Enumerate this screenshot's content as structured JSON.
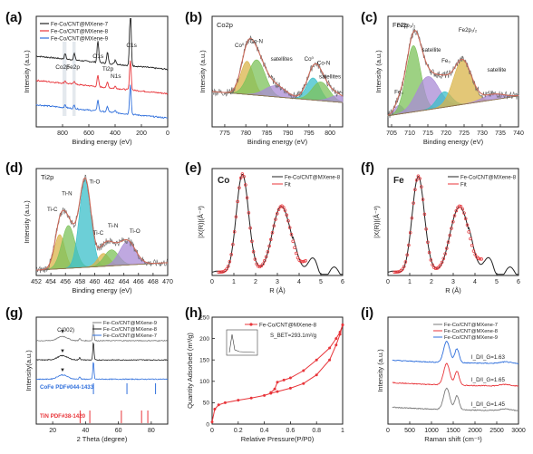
{
  "figure": {
    "panels": [
      {
        "id": "a",
        "label": "(a)"
      },
      {
        "id": "b",
        "label": "(b)"
      },
      {
        "id": "c",
        "label": "(c)"
      },
      {
        "id": "d",
        "label": "(d)"
      },
      {
        "id": "e",
        "label": "(e)"
      },
      {
        "id": "f",
        "label": "(f)"
      },
      {
        "id": "g",
        "label": "(g)"
      },
      {
        "id": "h",
        "label": "(h)"
      },
      {
        "id": "i",
        "label": "(i)"
      }
    ]
  },
  "colors": {
    "black": "#222222",
    "red": "#e8353a",
    "blue": "#2f6fdc",
    "gray": "#7a7a7a",
    "green": "#7cc25a",
    "cyan": "#3bbfc9",
    "purple": "#a98bd6",
    "gold": "#d9b44a",
    "envelope": "#c96a5a",
    "pink": "#f0a0a0"
  },
  "chart_data": [
    {
      "id": "a",
      "type": "line",
      "xlabel": "Binding energy (eV)",
      "ylabel": "Intensity (a.u.)",
      "xlim": [
        1000,
        0
      ],
      "xticks": [
        800,
        600,
        400,
        200,
        0
      ],
      "grid": false,
      "legend": "top-left",
      "series": [
        {
          "name": "Fe-Co/CNT@MXene-7",
          "color": "#222222",
          "offset": 0.52
        },
        {
          "name": "Fe-Co/CNT@MXene-8",
          "color": "#e8353a",
          "offset": 0.3
        },
        {
          "name": "Fe-Co/CNT@MXene-9",
          "color": "#2f6fdc",
          "offset": 0.08
        }
      ],
      "peaks": [
        {
          "x": 780,
          "h": 0.05
        },
        {
          "x": 711,
          "h": 0.06
        },
        {
          "x": 531,
          "h": 0.2
        },
        {
          "x": 458,
          "h": 0.1
        },
        {
          "x": 398,
          "h": 0.04
        },
        {
          "x": 284,
          "h": 0.55
        }
      ],
      "annotations": [
        "Co2p",
        "Fe2p",
        "O1s",
        "Ti2p",
        "N1s",
        "C1s"
      ]
    },
    {
      "id": "b",
      "type": "area",
      "title": "Co2p",
      "xlabel": "Binding energy (eV)",
      "ylabel": "Intensity (a.u.)",
      "xlim": [
        772,
        803
      ],
      "xticks": [
        775,
        780,
        785,
        790,
        795,
        800
      ],
      "grid": false,
      "components": [
        {
          "center": 780.3,
          "width": 1.5,
          "height": 0.3,
          "color": "#d9b44a"
        },
        {
          "center": 782.6,
          "width": 2.0,
          "height": 0.32,
          "color": "#7cc25a"
        },
        {
          "center": 787,
          "width": 2.5,
          "height": 0.1,
          "color": "#a98bd6"
        },
        {
          "center": 796,
          "width": 1.6,
          "height": 0.2,
          "color": "#3bbfc9"
        },
        {
          "center": 797.8,
          "width": 2.0,
          "height": 0.17,
          "color": "#7cc25a"
        },
        {
          "center": 802,
          "width": 2.0,
          "height": 0.06,
          "color": "#a98bd6"
        }
      ],
      "annotations": [
        "Co⁰",
        "Co-N",
        "satellites",
        "Co⁰",
        "Co-N",
        "satellites"
      ]
    },
    {
      "id": "c",
      "type": "area",
      "title": "Fe2p",
      "xlabel": "Binding energy (eV)",
      "ylabel": "Intensity (a.u.)",
      "xlim": [
        704,
        740
      ],
      "xticks": [
        705,
        710,
        715,
        720,
        725,
        730,
        735,
        740
      ],
      "grid": false,
      "components": [
        {
          "center": 707,
          "width": 1.2,
          "height": 0.08,
          "color": "#a98bd6"
        },
        {
          "center": 711,
          "width": 2.0,
          "height": 0.6,
          "color": "#7cc25a"
        },
        {
          "center": 715,
          "width": 3.0,
          "height": 0.3,
          "color": "#a98bd6"
        },
        {
          "center": 719.5,
          "width": 2.0,
          "height": 0.14,
          "color": "#3bbfc9"
        },
        {
          "center": 724.5,
          "width": 2.5,
          "height": 0.4,
          "color": "#d9b44a"
        },
        {
          "center": 733,
          "width": 3.0,
          "height": 0.05,
          "color": "#a98bd6"
        }
      ],
      "annotations": [
        "Fe₀",
        "Fe2p₃/₂",
        "satellite",
        "Fe₀",
        "Fe2p₁/₂",
        "satellite"
      ]
    },
    {
      "id": "d",
      "type": "area",
      "title": "Ti2p",
      "xlabel": "Binding energy (eV)",
      "ylabel": "Intensity (a.u.)",
      "xlim": [
        452,
        470
      ],
      "xticks": [
        452,
        454,
        456,
        458,
        460,
        462,
        464,
        466,
        468,
        470
      ],
      "grid": false,
      "components": [
        {
          "center": 455.2,
          "width": 0.7,
          "height": 0.32,
          "color": "#d9b44a"
        },
        {
          "center": 456.4,
          "width": 0.9,
          "height": 0.4,
          "color": "#7cc25a"
        },
        {
          "center": 458.7,
          "width": 0.8,
          "height": 0.82,
          "color": "#3bbfc9"
        },
        {
          "center": 461.2,
          "width": 0.8,
          "height": 0.12,
          "color": "#d9b44a"
        },
        {
          "center": 462.3,
          "width": 1.0,
          "height": 0.15,
          "color": "#7cc25a"
        },
        {
          "center": 464.5,
          "width": 1.1,
          "height": 0.22,
          "color": "#a98bd6"
        }
      ],
      "annotations": [
        "Ti-C",
        "Ti-N",
        "Ti-O",
        "Ti-C",
        "Ti-N",
        "Ti-O"
      ]
    },
    {
      "id": "e",
      "type": "line",
      "title": "Co",
      "xlabel": "R (Å)",
      "ylabel": "|X(R)|(Å⁻³)",
      "xlim": [
        0,
        6
      ],
      "xticks": [
        0,
        1,
        2,
        3,
        4,
        5,
        6
      ],
      "grid": false,
      "legend": "top-right",
      "series": [
        {
          "name": "Fe-Co/CNT@MXene-8",
          "color": "#222222"
        },
        {
          "name": "Fit",
          "color": "#e8353a"
        }
      ],
      "peaks": [
        {
          "x": 1.4,
          "h": 0.92
        },
        {
          "x": 3.2,
          "h": 0.62
        }
      ]
    },
    {
      "id": "f",
      "type": "line",
      "title": "Fe",
      "xlabel": "R (Å)",
      "ylabel": "|X(R)|(Å⁻³)",
      "xlim": [
        0,
        6
      ],
      "xticks": [
        0,
        1,
        2,
        3,
        4,
        5,
        6
      ],
      "grid": false,
      "legend": "top-right",
      "series": [
        {
          "name": "Fe-Co/CNT@MXene-8",
          "color": "#222222"
        },
        {
          "name": "Fit",
          "color": "#e8353a"
        }
      ],
      "peaks": [
        {
          "x": 1.4,
          "h": 0.9
        },
        {
          "x": 3.3,
          "h": 0.62
        }
      ]
    },
    {
      "id": "g",
      "type": "line",
      "xlabel": "2 Theta (degree)",
      "ylabel": "Intensity(a.u.)",
      "xlim": [
        10,
        90
      ],
      "xticks": [
        20,
        40,
        60,
        80
      ],
      "grid": false,
      "legend": "top-right",
      "series": [
        {
          "name": "Fe-Co/CNT@MXene-9",
          "color": "#7a7a7a"
        },
        {
          "name": "Fe-Co/CNT@MXene-8",
          "color": "#222222"
        },
        {
          "name": "Fe-Co/CNT@MXene-7",
          "color": "#2f6fdc"
        }
      ],
      "annotations": [
        "C(002)",
        "CoFe PDF#044-1433",
        "TiN PDF#38-1420"
      ],
      "refs": [
        {
          "name": "CoFe PDF#044-1433",
          "color": "#2f6fdc",
          "lines": [
            44.8,
            65.2,
            82.6
          ]
        },
        {
          "name": "TiN PDF#38-1420",
          "color": "#e8353a",
          "lines": [
            36.7,
            42.6,
            61.8,
            74.1,
            77.9
          ]
        }
      ]
    },
    {
      "id": "h",
      "type": "line",
      "xlabel": "Relative Pressure(P/P0)",
      "ylabel": "Quantity Adsorbed (m³/g)",
      "xlim": [
        0,
        1.0
      ],
      "ylim": [
        0,
        250
      ],
      "xticks": [
        0.0,
        0.2,
        0.4,
        0.6,
        0.8,
        1.0
      ],
      "yticks": [
        0,
        50,
        100,
        150,
        200,
        250
      ],
      "grid": false,
      "legend": "top-left",
      "series": [
        {
          "name": "Fe-Co/CNT@MXene-8",
          "color": "#e8353a"
        }
      ],
      "annotations": [
        "S_BET=293.1m²/g"
      ],
      "adsorption": [
        [
          0.0,
          5
        ],
        [
          0.02,
          35
        ],
        [
          0.05,
          45
        ],
        [
          0.1,
          50
        ],
        [
          0.2,
          56
        ],
        [
          0.3,
          61
        ],
        [
          0.4,
          67
        ],
        [
          0.45,
          72
        ],
        [
          0.5,
          76
        ],
        [
          0.6,
          84
        ],
        [
          0.7,
          95
        ],
        [
          0.8,
          115
        ],
        [
          0.9,
          150
        ],
        [
          0.95,
          185
        ],
        [
          0.98,
          210
        ],
        [
          1.0,
          232
        ]
      ],
      "desorption": [
        [
          1.0,
          232
        ],
        [
          0.98,
          215
        ],
        [
          0.95,
          200
        ],
        [
          0.9,
          178
        ],
        [
          0.8,
          150
        ],
        [
          0.7,
          125
        ],
        [
          0.6,
          108
        ],
        [
          0.55,
          103
        ],
        [
          0.5,
          98
        ],
        [
          0.48,
          82
        ],
        [
          0.45,
          74
        ]
      ]
    },
    {
      "id": "i",
      "type": "line",
      "xlabel": "Raman shift (cm⁻¹)",
      "ylabel": "Intensity (a.u.)",
      "xlim": [
        0,
        3000
      ],
      "xticks": [
        0,
        500,
        1000,
        1500,
        2000,
        2500,
        3000
      ],
      "grid": false,
      "legend": "top-right",
      "series": [
        {
          "name": "Fe-Co/CNT@MXene-7",
          "color": "#7a7a7a",
          "ratio": "I_D/I_G=1.45"
        },
        {
          "name": "Fe-Co/CNT@MXene-8",
          "color": "#e8353a",
          "ratio": "I_D/I_G=1.65"
        },
        {
          "name": "Fe-Co/CNT@MXene-9",
          "color": "#2f6fdc",
          "ratio": "I_D/I_G=1.63"
        }
      ]
    }
  ]
}
